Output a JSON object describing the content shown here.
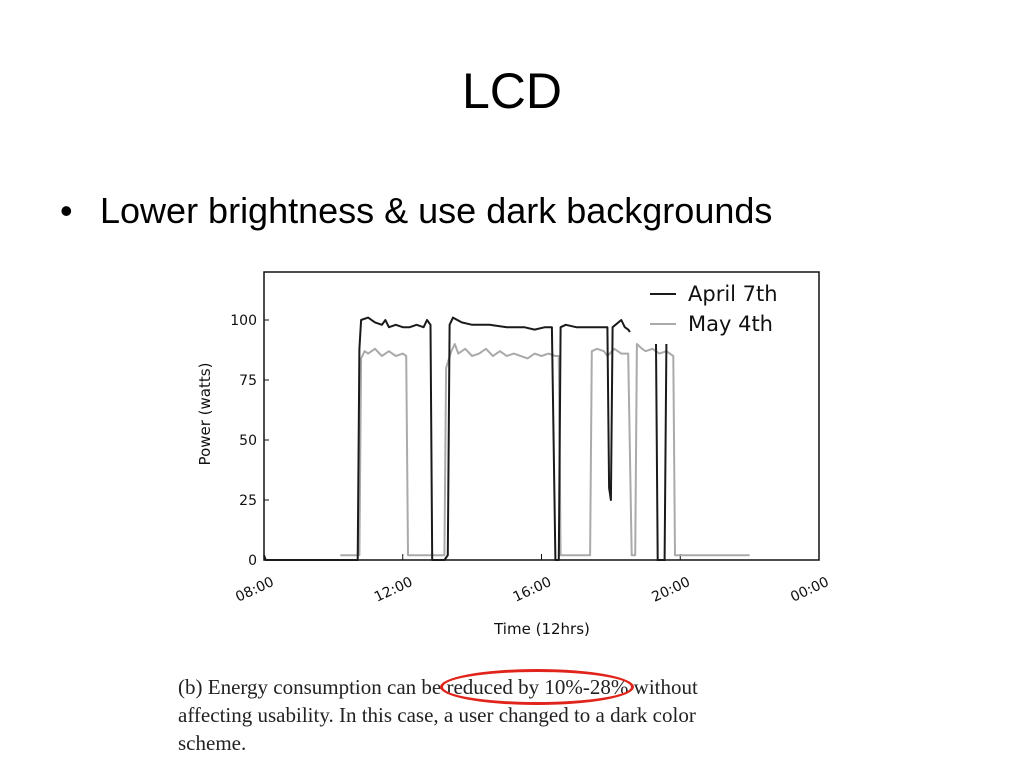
{
  "slide": {
    "title": "LCD",
    "bullet": "Lower brightness & use dark backgrounds"
  },
  "caption": {
    "line1": "(b) Energy consumption can be reduced by 10%-28% without",
    "line2": "affecting usability.  In this case, a user changed to a dark color",
    "line3": "scheme.",
    "highlight_text": "reduced by 10%-28%",
    "highlight_color": "#e0241b"
  },
  "chart_data": {
    "type": "line",
    "xlabel": "Time (12hrs)",
    "ylabel": "Power (watts)",
    "xlim": [
      8,
      24
    ],
    "ylim": [
      0,
      120
    ],
    "x_ticks": [
      8,
      12,
      16,
      20,
      24
    ],
    "x_tick_labels": [
      "08:00",
      "12:00",
      "16:00",
      "20:00",
      "00:00"
    ],
    "y_ticks": [
      0,
      25,
      50,
      75,
      100
    ],
    "y_tick_labels": [
      "0",
      "25",
      "50",
      "75",
      "100"
    ],
    "grid": false,
    "legend_position": "top-right",
    "series": [
      {
        "name": "April 7th",
        "color": "#1a1a1a",
        "points": [
          [
            8.0,
            2
          ],
          [
            8.05,
            0
          ],
          [
            10.7,
            0
          ],
          [
            10.75,
            88
          ],
          [
            10.8,
            100
          ],
          [
            11.0,
            101
          ],
          [
            11.2,
            99
          ],
          [
            11.4,
            98
          ],
          [
            11.5,
            100
          ],
          [
            11.6,
            97
          ],
          [
            11.8,
            98
          ],
          [
            12.0,
            97
          ],
          [
            12.2,
            97
          ],
          [
            12.4,
            98
          ],
          [
            12.6,
            97
          ],
          [
            12.7,
            100
          ],
          [
            12.8,
            98
          ],
          [
            12.85,
            0
          ],
          [
            13.2,
            0
          ],
          [
            13.3,
            2
          ],
          [
            13.35,
            98
          ],
          [
            13.45,
            101
          ],
          [
            13.7,
            99
          ],
          [
            14.0,
            98
          ],
          [
            14.5,
            98
          ],
          [
            15.0,
            97
          ],
          [
            15.5,
            97
          ],
          [
            15.8,
            96
          ],
          [
            16.1,
            97
          ],
          [
            16.3,
            97
          ],
          [
            16.4,
            0
          ],
          [
            16.5,
            0
          ],
          [
            16.55,
            97
          ],
          [
            16.7,
            98
          ],
          [
            17.0,
            97
          ],
          [
            17.5,
            97
          ],
          [
            17.9,
            97
          ],
          [
            17.95,
            30
          ],
          [
            18.0,
            25
          ],
          [
            18.05,
            97
          ],
          [
            18.3,
            100
          ],
          [
            18.4,
            97
          ],
          [
            18.5,
            96
          ],
          [
            18.55,
            95
          ]
        ],
        "extra_segments": [
          [
            [
              19.3,
              90
            ],
            [
              19.35,
              0
            ],
            [
              19.55,
              0
            ],
            [
              19.6,
              90
            ]
          ]
        ]
      },
      {
        "name": "May 4th",
        "color": "#aaaaaa",
        "points": [
          [
            10.2,
            2
          ],
          [
            10.75,
            2
          ],
          [
            10.8,
            84
          ],
          [
            10.9,
            87
          ],
          [
            11.0,
            86
          ],
          [
            11.2,
            88
          ],
          [
            11.4,
            85
          ],
          [
            11.6,
            87
          ],
          [
            11.8,
            85
          ],
          [
            12.0,
            86
          ],
          [
            12.1,
            85
          ],
          [
            12.15,
            2
          ],
          [
            13.2,
            2
          ],
          [
            13.25,
            80
          ],
          [
            13.4,
            87
          ],
          [
            13.5,
            90
          ],
          [
            13.6,
            86
          ],
          [
            13.8,
            88
          ],
          [
            14.0,
            85
          ],
          [
            14.2,
            86
          ],
          [
            14.4,
            88
          ],
          [
            14.6,
            85
          ],
          [
            14.8,
            87
          ],
          [
            15.0,
            85
          ],
          [
            15.2,
            86
          ],
          [
            15.4,
            85
          ],
          [
            15.6,
            84
          ],
          [
            15.8,
            86
          ],
          [
            16.0,
            85
          ],
          [
            16.2,
            86
          ],
          [
            16.4,
            85
          ],
          [
            16.5,
            85
          ],
          [
            16.55,
            2
          ],
          [
            17.4,
            2
          ],
          [
            17.45,
            87
          ],
          [
            17.6,
            88
          ],
          [
            17.8,
            87
          ],
          [
            17.9,
            85
          ],
          [
            18.1,
            88
          ],
          [
            18.3,
            86
          ],
          [
            18.5,
            86
          ],
          [
            18.6,
            2
          ],
          [
            18.7,
            2
          ],
          [
            18.75,
            90
          ],
          [
            18.9,
            88
          ],
          [
            19.0,
            87
          ],
          [
            19.2,
            88
          ],
          [
            19.4,
            86
          ],
          [
            19.6,
            87
          ],
          [
            19.8,
            85
          ],
          [
            19.85,
            2
          ],
          [
            20.0,
            2
          ],
          [
            22.0,
            2
          ]
        ]
      }
    ]
  }
}
